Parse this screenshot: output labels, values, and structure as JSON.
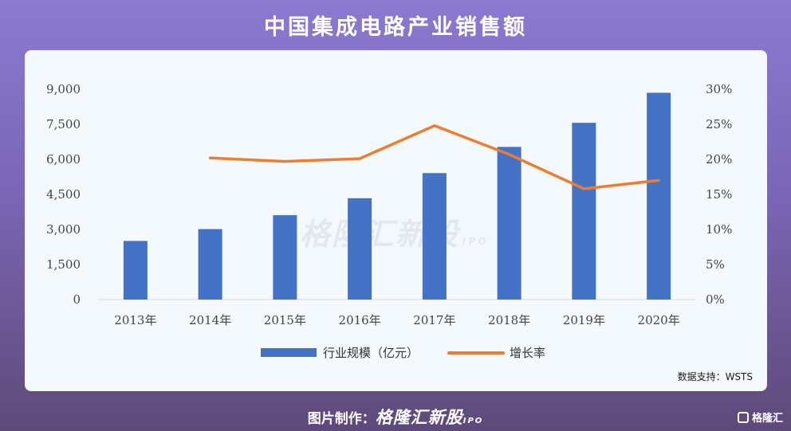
{
  "header": {
    "title": "中国集成电路产业销售额"
  },
  "watermark": {
    "text": "格隆汇新股",
    "sub": "IPO"
  },
  "source_note": "数据支持：WSTS",
  "footer": {
    "prefix": "图片制作：",
    "brand": "格隆汇新股",
    "brand_sub": "IPO"
  },
  "corner_brand": "格隆汇",
  "chart_data": {
    "type": "bar",
    "categories": [
      "2013年",
      "2014年",
      "2015年",
      "2016年",
      "2017年",
      "2018年",
      "2019年",
      "2020年"
    ],
    "series": [
      {
        "name": "行业规模（亿元）",
        "type": "bar",
        "axis": "left",
        "color": "#4472c4",
        "values": [
          2508,
          3015,
          3610,
          4336,
          5411,
          6532,
          7562,
          8848
        ]
      },
      {
        "name": "增长率",
        "type": "line",
        "axis": "right",
        "color": "#ed7d31",
        "values": [
          null,
          20.2,
          19.7,
          20.1,
          24.8,
          20.7,
          15.8,
          17.0
        ]
      }
    ],
    "y_left": {
      "ticks": [
        "9,000",
        "7,500",
        "6,000",
        "4,500",
        "3,000",
        "1,500",
        "0"
      ],
      "lim": [
        0,
        9000
      ]
    },
    "y_right": {
      "ticks": [
        "30%",
        "25%",
        "20%",
        "15%",
        "10%",
        "5%",
        "0%"
      ],
      "lim": [
        0,
        30
      ]
    },
    "legend": "bottom",
    "grid": false
  }
}
